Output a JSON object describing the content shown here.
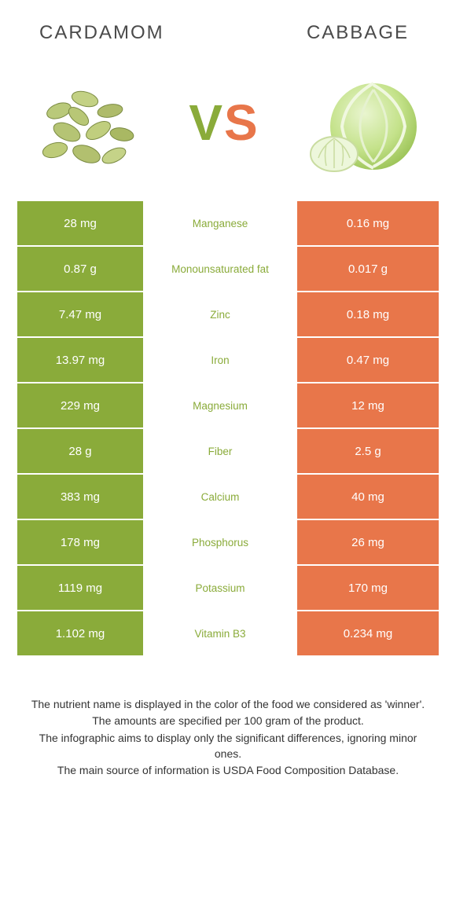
{
  "left_food": {
    "name": "Cardamom",
    "color": "#8aab3a"
  },
  "right_food": {
    "name": "Cabbage",
    "color": "#e8764a"
  },
  "mid_text_color_left": "#8aab3a",
  "mid_text_color_right": "#e8764a",
  "rows": [
    {
      "left": "28 mg",
      "nutrient": "Manganese",
      "right": "0.16 mg",
      "winner": "left"
    },
    {
      "left": "0.87 g",
      "nutrient": "Monounsaturated fat",
      "right": "0.017 g",
      "winner": "left"
    },
    {
      "left": "7.47 mg",
      "nutrient": "Zinc",
      "right": "0.18 mg",
      "winner": "left"
    },
    {
      "left": "13.97 mg",
      "nutrient": "Iron",
      "right": "0.47 mg",
      "winner": "left"
    },
    {
      "left": "229 mg",
      "nutrient": "Magnesium",
      "right": "12 mg",
      "winner": "left"
    },
    {
      "left": "28 g",
      "nutrient": "Fiber",
      "right": "2.5 g",
      "winner": "left"
    },
    {
      "left": "383 mg",
      "nutrient": "Calcium",
      "right": "40 mg",
      "winner": "left"
    },
    {
      "left": "178 mg",
      "nutrient": "Phosphorus",
      "right": "26 mg",
      "winner": "left"
    },
    {
      "left": "1119 mg",
      "nutrient": "Potassium",
      "right": "170 mg",
      "winner": "left"
    },
    {
      "left": "1.102 mg",
      "nutrient": "Vitamin B3",
      "right": "0.234 mg",
      "winner": "left"
    }
  ],
  "footer": [
    "The nutrient name is displayed in the color of the food we considered as 'winner'.",
    "The amounts are specified per 100 gram of the product.",
    "The infographic aims to display only the significant differences, ignoring minor ones.",
    "The main source of information is USDA Food Composition Database."
  ]
}
